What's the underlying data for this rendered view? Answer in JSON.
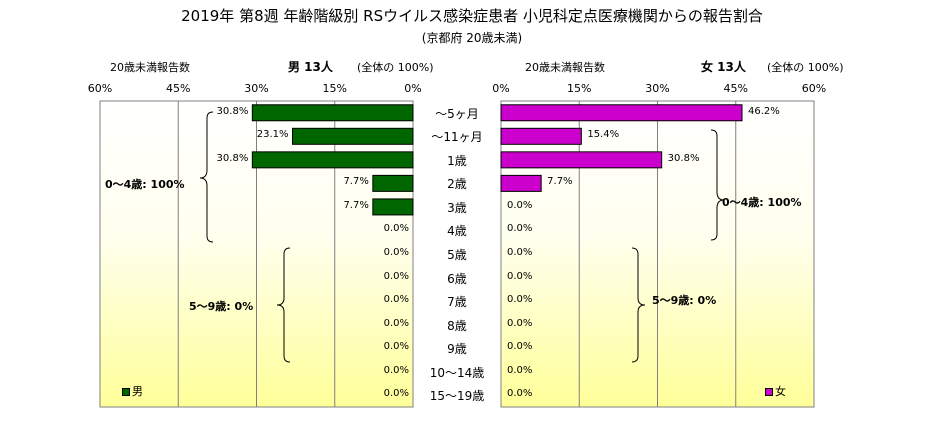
{
  "title": "2019年 第8週 年齢階級別 RSウイルス感染症患者 小児科定点医療機関からの報告割合",
  "subtitle": "(京都府 20歳未満)",
  "colors": {
    "male": "#006600",
    "female": "#CC00CC",
    "grid": "#808080"
  },
  "male_header": {
    "left": "20歳未満報告数",
    "label": "男 13人",
    "note": "(全体の 100%)"
  },
  "female_header": {
    "left": "20歳未満報告数",
    "label": "女 13人",
    "note": "(全体の 100%)"
  },
  "male_ticks": [
    "60%",
    "45%",
    "30%",
    "15%",
    "0%"
  ],
  "female_ticks": [
    "0%",
    "15%",
    "30%",
    "45%",
    "60%"
  ],
  "groups": {
    "male_0_4": "0～4歳: 100%",
    "male_5_9": "5～9歳: 0%",
    "female_0_4": "0～4歳: 100%",
    "female_5_9": "5～9歳: 0%"
  },
  "legend": {
    "male": "男",
    "female": "女"
  },
  "chart_data": {
    "type": "bar",
    "orientation": "horizontal",
    "categories": [
      "～5ヶ月",
      "～11ヶ月",
      "1歳",
      "2歳",
      "3歳",
      "4歳",
      "5歳",
      "6歳",
      "7歳",
      "8歳",
      "9歳",
      "10～14歳",
      "15～19歳"
    ],
    "series": [
      {
        "name": "男",
        "values": [
          30.8,
          23.1,
          30.8,
          7.7,
          7.7,
          0.0,
          0.0,
          0.0,
          0.0,
          0.0,
          0.0,
          0.0,
          0.0
        ],
        "labels": [
          "30.8%",
          "23.1%",
          "30.8%",
          "7.7%",
          "7.7%",
          "0.0%",
          "0.0%",
          "0.0%",
          "0.0%",
          "0.0%",
          "0.0%",
          "0.0%",
          "0.0%"
        ]
      },
      {
        "name": "女",
        "values": [
          46.2,
          15.4,
          30.8,
          7.7,
          0.0,
          0.0,
          0.0,
          0.0,
          0.0,
          0.0,
          0.0,
          0.0,
          0.0
        ],
        "labels": [
          "46.2%",
          "15.4%",
          "30.8%",
          "7.7%",
          "0.0%",
          "0.0%",
          "0.0%",
          "0.0%",
          "0.0%",
          "0.0%",
          "0.0%",
          "0.0%",
          "0.0%"
        ]
      }
    ],
    "xlim": [
      0,
      60
    ],
    "grid": true,
    "legend": "bottom"
  }
}
